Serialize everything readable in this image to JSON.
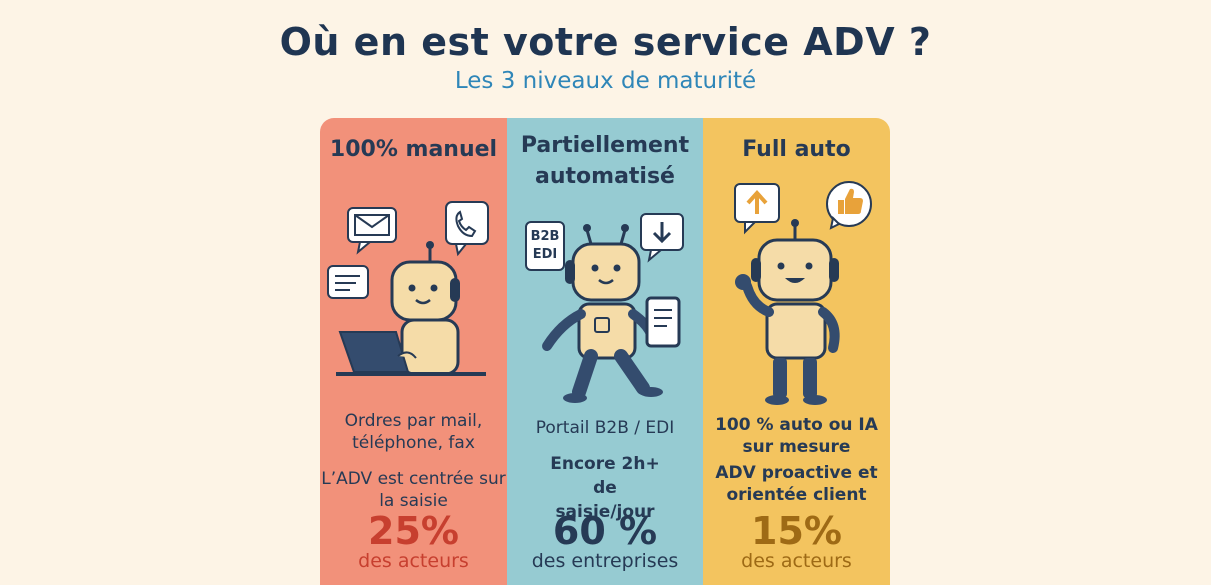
{
  "header": {
    "title": "Où en est votre service ADV ?",
    "subtitle": "Les 3 niveaux de maturité"
  },
  "columns": [
    {
      "title": "100% manuel",
      "line1": "Ordres par mail, téléphone, fax",
      "line2": "L’ADV est centrée sur la saisie",
      "percent": "25%",
      "percent_label": "des acteurs",
      "bg_color": "#f2917a",
      "accent_color": "#c73f2f",
      "icons": [
        "envelope-icon",
        "phone-icon",
        "chat-icon",
        "laptop-icon"
      ]
    },
    {
      "title": "Partiellement automatisé",
      "badge": "B2B EDI",
      "line1": "Portail B2B / EDI",
      "line2": "Encore 2h+ de saisie/jour",
      "percent": "60 %",
      "percent_label": "des entreprises",
      "bg_color": "#96cbd2",
      "accent_color": "#263a55",
      "icons": [
        "arrow-down-icon",
        "tablet-icon"
      ]
    },
    {
      "title": "Full auto",
      "line1": "100 % auto ou IA sur mesure",
      "line2": "ADV proactive et orientée client",
      "percent": "15%",
      "percent_label": "des acteurs",
      "bg_color": "#f3c45f",
      "accent_color": "#9e6a15",
      "icons": [
        "arrow-up-icon",
        "thumbs-up-icon"
      ]
    }
  ]
}
